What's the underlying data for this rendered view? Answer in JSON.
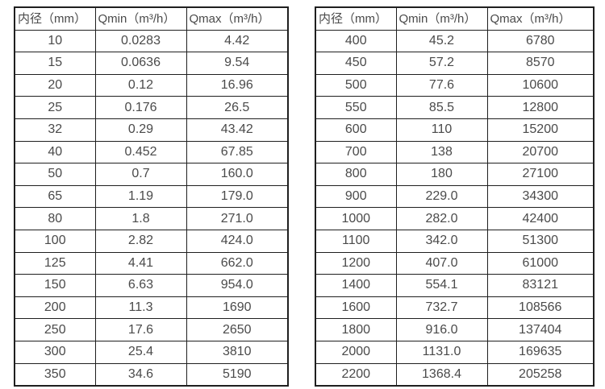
{
  "colors": {
    "background": "#ffffff",
    "border": "#1f1f1f",
    "text": "#4a4a4a"
  },
  "tables": [
    {
      "name": "diameter-flow-table-small",
      "headers": [
        "内径（mm）",
        "Qmin（m³/h）",
        "Qmax（m³/h）"
      ],
      "rows": [
        [
          "10",
          "0.0283",
          "4.42"
        ],
        [
          "15",
          "0.0636",
          "9.54"
        ],
        [
          "20",
          "0.12",
          "16.96"
        ],
        [
          "25",
          "0.176",
          "26.5"
        ],
        [
          "32",
          "0.29",
          "43.42"
        ],
        [
          "40",
          "0.452",
          "67.85"
        ],
        [
          "50",
          "0.7",
          "160.0"
        ],
        [
          "65",
          "1.19",
          "179.0"
        ],
        [
          "80",
          "1.8",
          "271.0"
        ],
        [
          "100",
          "2.82",
          "424.0"
        ],
        [
          "125",
          "4.41",
          "662.0"
        ],
        [
          "150",
          "6.63",
          "954.0"
        ],
        [
          "200",
          "11.3",
          "1690"
        ],
        [
          "250",
          "17.6",
          "2650"
        ],
        [
          "300",
          "25.4",
          "3810"
        ],
        [
          "350",
          "34.6",
          "5190"
        ]
      ]
    },
    {
      "name": "diameter-flow-table-large",
      "headers": [
        "内径（mm）",
        "Qmin（m³/h）",
        "Qmax（m³/h）"
      ],
      "rows": [
        [
          "400",
          "45.2",
          "6780"
        ],
        [
          "450",
          "57.2",
          "8570"
        ],
        [
          "500",
          "77.6",
          "10600"
        ],
        [
          "550",
          "85.5",
          "12800"
        ],
        [
          "600",
          "110",
          "15200"
        ],
        [
          "700",
          "138",
          "20700"
        ],
        [
          "800",
          "180",
          "27100"
        ],
        [
          "900",
          "229.0",
          "34300"
        ],
        [
          "1000",
          "282.0",
          "42400"
        ],
        [
          "1100",
          "342.0",
          "51300"
        ],
        [
          "1200",
          "407.0",
          "61000"
        ],
        [
          "1400",
          "554.1",
          "83121"
        ],
        [
          "1600",
          "732.7",
          "108566"
        ],
        [
          "1800",
          "916.0",
          "137404"
        ],
        [
          "2000",
          "1131.0",
          "169635"
        ],
        [
          "2200",
          "1368.4",
          "205258"
        ]
      ]
    }
  ]
}
